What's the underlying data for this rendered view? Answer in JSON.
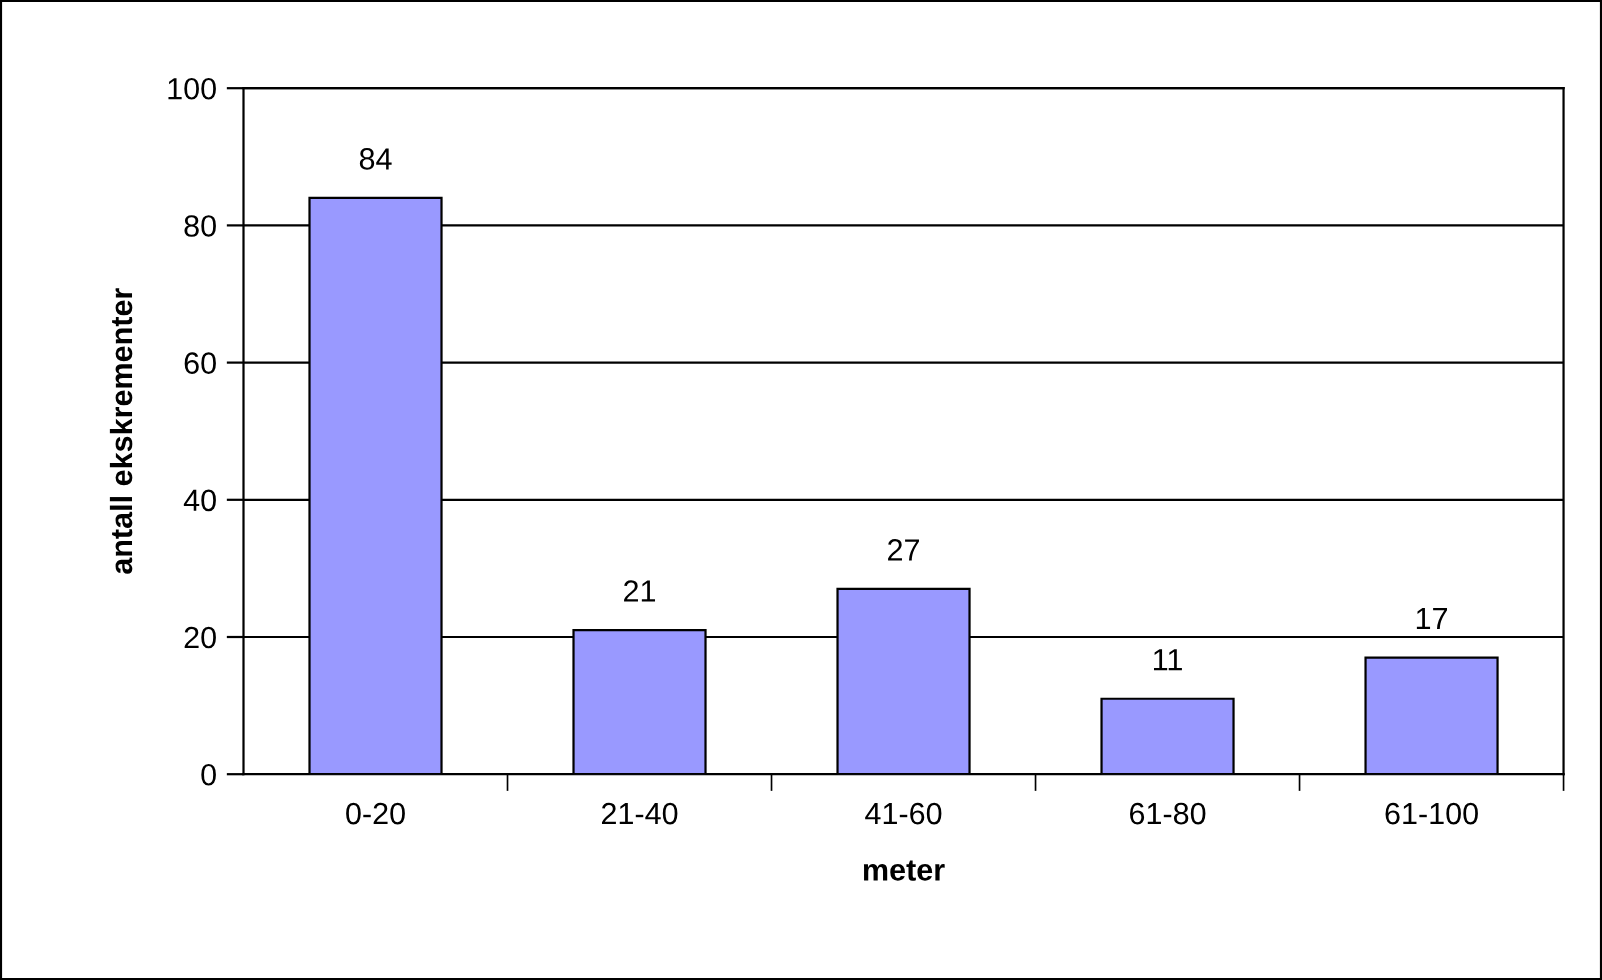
{
  "chart_data": {
    "type": "bar",
    "categories": [
      "0-20",
      "21-40",
      "41-60",
      "61-80",
      "61-100"
    ],
    "values": [
      84,
      21,
      27,
      11,
      17
    ],
    "color": "#9999ff",
    "xlabel": "meter",
    "ylabel": "antall ekskrementer",
    "ylim": [
      0,
      100
    ],
    "yticks": [
      0,
      20,
      40,
      60,
      80,
      100
    ],
    "grid": "y",
    "data_labels": true
  }
}
